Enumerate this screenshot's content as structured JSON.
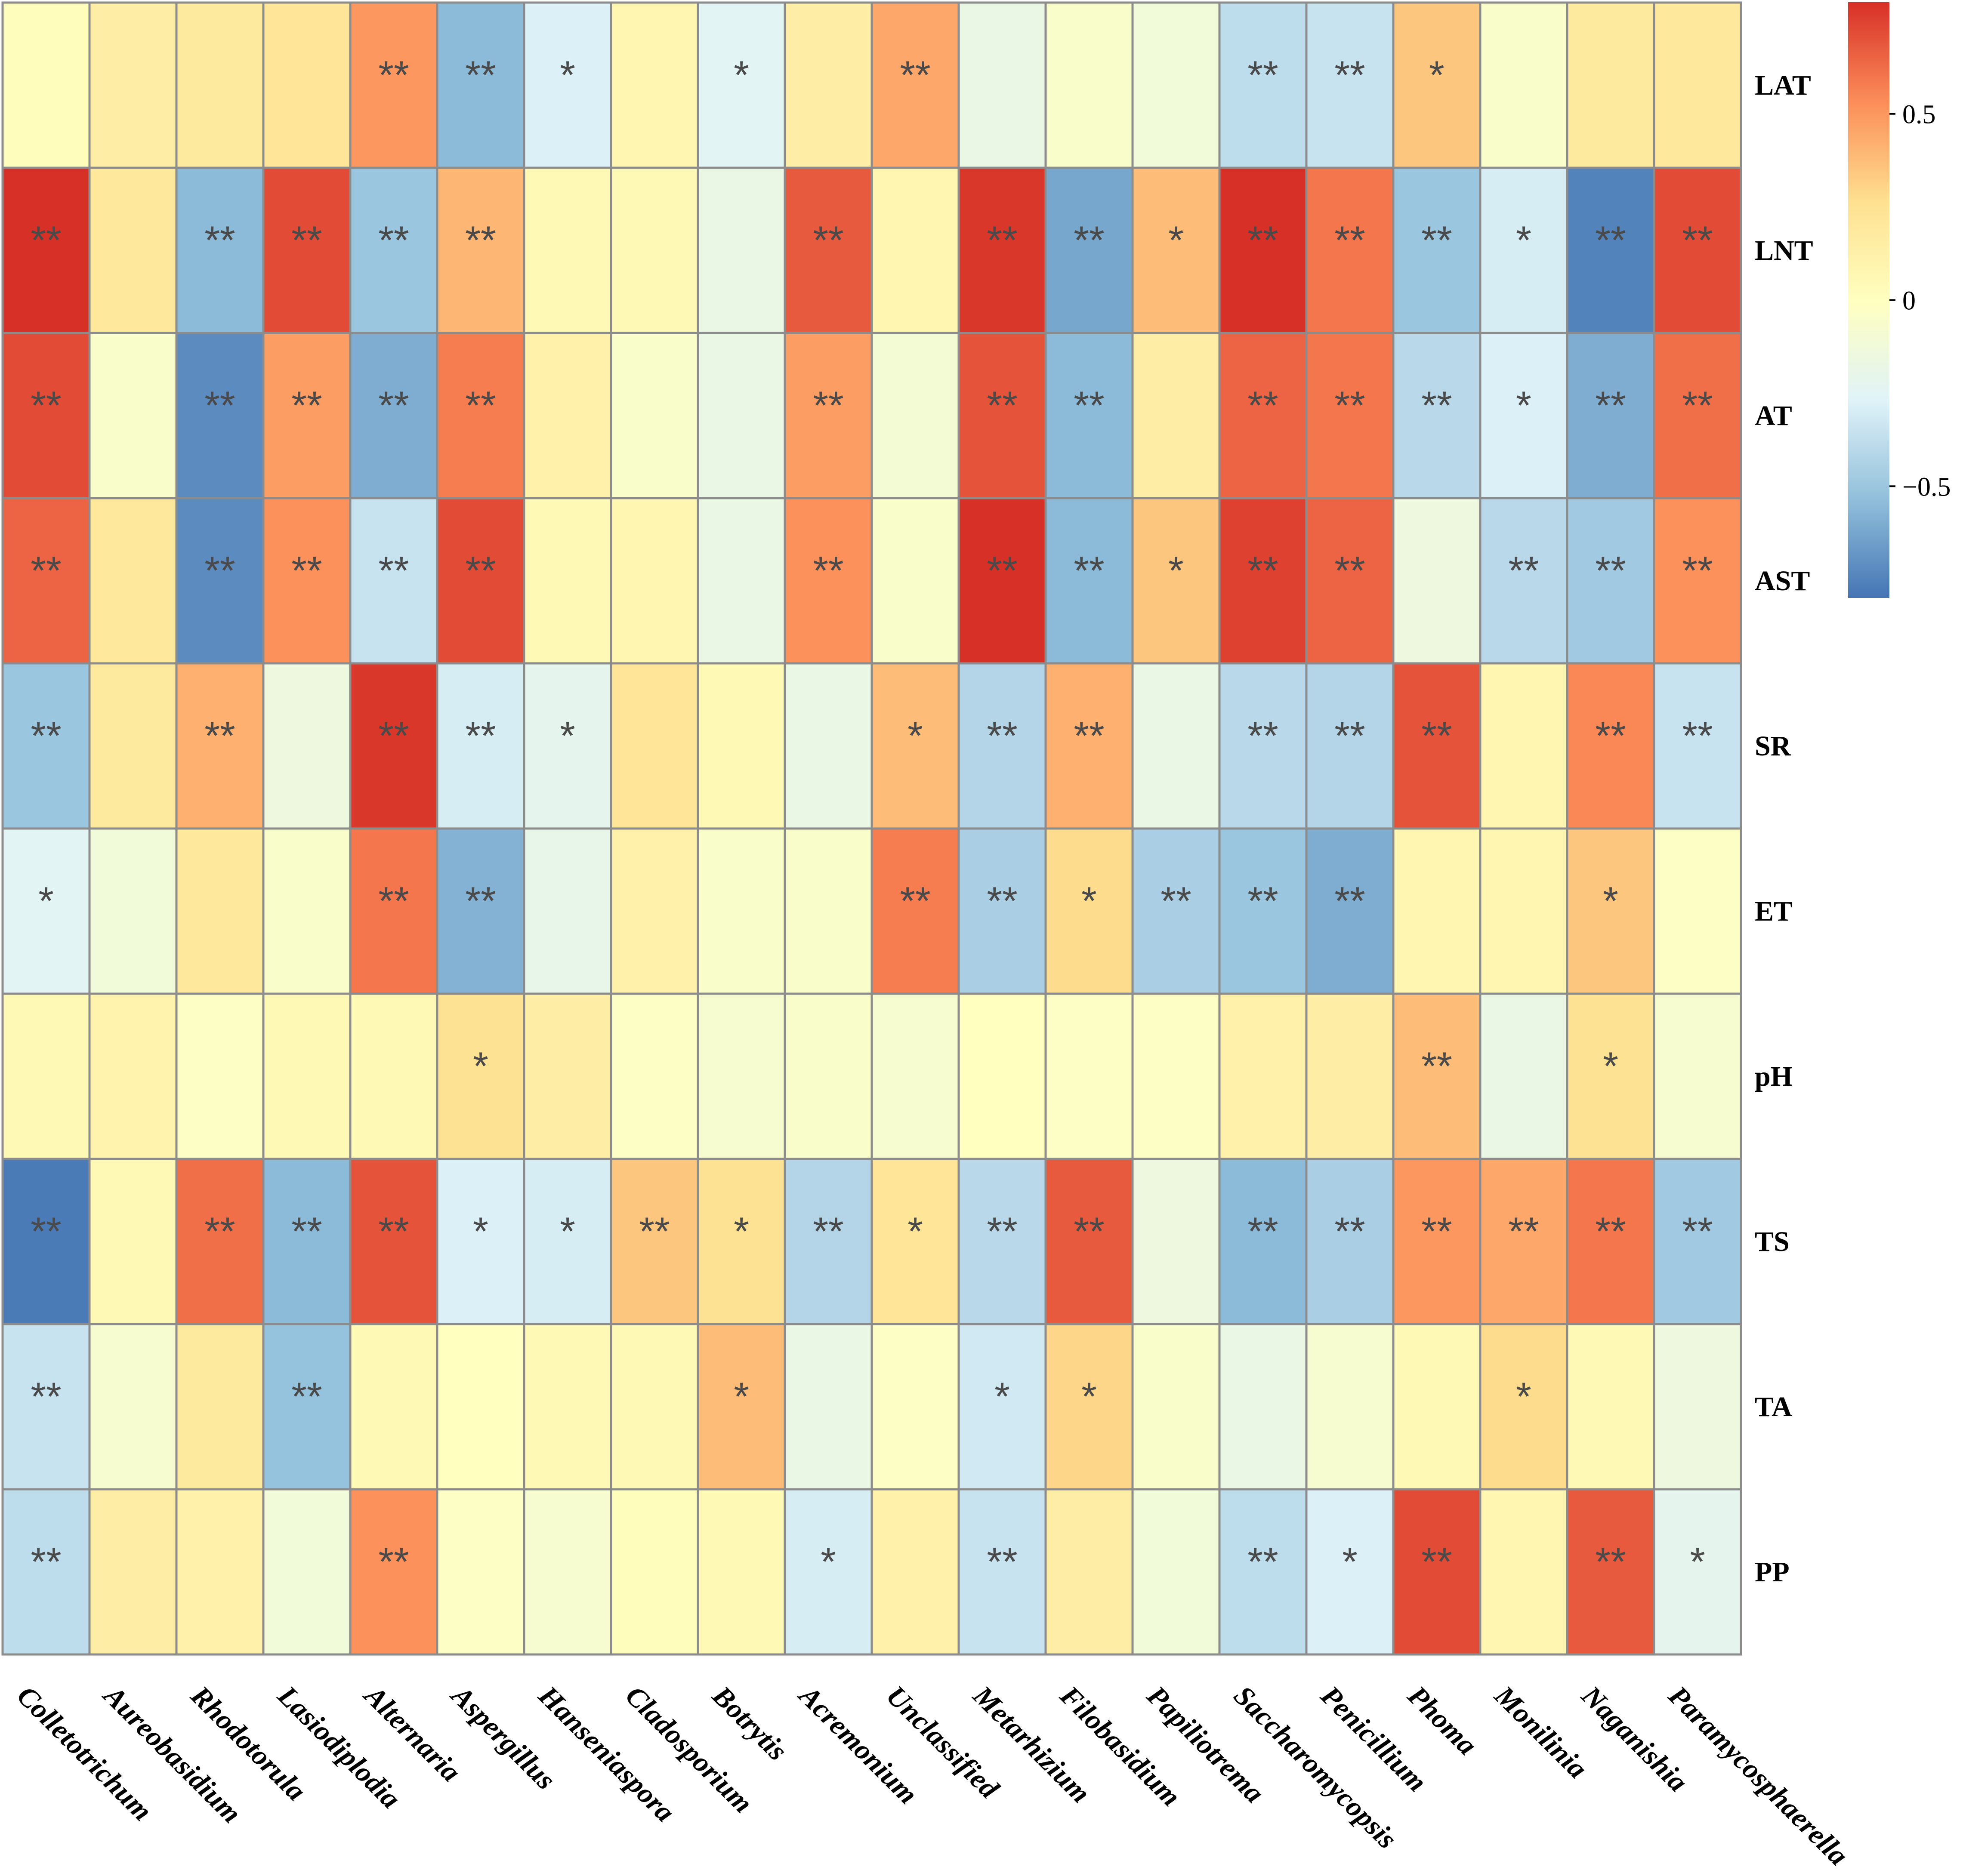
{
  "chart_data": {
    "type": "heatmap",
    "title": "",
    "columns": [
      "Colletotrichum",
      "Aureobasidium",
      "Rhodotorula",
      "Lasiodiplodia",
      "Alternaria",
      "Aspergillus",
      "Hanseniaspora",
      "Cladosporium",
      "Botrytis",
      "Acremonium",
      "Unclassified",
      "Metarhizium",
      "Filobasidium",
      "Papiliotrema",
      "Saccharomycopsis",
      "Penicillium",
      "Phoma",
      "Monilinia",
      "Naganishia",
      "Paramycosphaerella"
    ],
    "rows": [
      "LAT",
      "LNT",
      "AT",
      "AST",
      "SR",
      "ET",
      "pH",
      "TS",
      "TA",
      "PP"
    ],
    "values": [
      [
        0.02,
        0.15,
        0.18,
        0.22,
        0.5,
        -0.55,
        -0.28,
        0.08,
        -0.25,
        0.15,
        0.45,
        -0.18,
        -0.05,
        -0.12,
        -0.38,
        -0.35,
        0.35,
        -0.05,
        0.18,
        0.2
      ],
      [
        0.82,
        0.2,
        -0.55,
        0.72,
        -0.5,
        0.4,
        0.05,
        0.05,
        -0.18,
        0.68,
        0.08,
        0.78,
        -0.62,
        0.38,
        0.8,
        0.6,
        -0.5,
        -0.3,
        -0.75,
        0.72
      ],
      [
        0.72,
        -0.05,
        -0.72,
        0.48,
        -0.6,
        0.58,
        0.12,
        -0.05,
        -0.18,
        0.48,
        -0.1,
        0.7,
        -0.55,
        0.15,
        0.65,
        0.6,
        -0.4,
        -0.28,
        -0.6,
        0.62
      ],
      [
        0.65,
        0.2,
        -0.72,
        0.52,
        -0.35,
        0.72,
        0.05,
        0.08,
        -0.18,
        0.52,
        -0.05,
        0.85,
        -0.55,
        0.35,
        0.75,
        0.65,
        -0.15,
        -0.4,
        -0.48,
        0.52
      ],
      [
        -0.5,
        0.18,
        0.42,
        -0.15,
        0.78,
        -0.3,
        -0.22,
        0.22,
        0.05,
        -0.18,
        0.38,
        -0.42,
        0.42,
        -0.18,
        -0.4,
        -0.42,
        0.7,
        0.08,
        0.55,
        -0.35
      ],
      [
        -0.25,
        -0.12,
        0.2,
        -0.05,
        0.6,
        -0.58,
        -0.2,
        0.12,
        -0.05,
        -0.05,
        0.58,
        -0.45,
        0.28,
        -0.45,
        -0.5,
        -0.6,
        0.08,
        0.08,
        0.35,
        -0.03
      ],
      [
        0.05,
        0.1,
        -0.03,
        0.05,
        0.05,
        0.25,
        0.15,
        -0.03,
        -0.08,
        -0.05,
        -0.08,
        0.0,
        -0.03,
        -0.03,
        0.12,
        0.15,
        0.38,
        -0.18,
        0.25,
        -0.08
      ],
      [
        -0.78,
        0.05,
        0.62,
        -0.55,
        0.7,
        -0.28,
        -0.3,
        0.35,
        0.25,
        -0.42,
        0.22,
        -0.4,
        0.68,
        -0.15,
        -0.55,
        -0.45,
        0.5,
        0.45,
        0.6,
        -0.48
      ],
      [
        -0.35,
        -0.08,
        0.18,
        -0.52,
        0.05,
        0.0,
        0.05,
        0.05,
        0.38,
        -0.18,
        -0.03,
        -0.32,
        0.3,
        -0.05,
        -0.18,
        -0.08,
        0.05,
        0.28,
        0.05,
        -0.15
      ],
      [
        -0.38,
        0.15,
        0.12,
        -0.12,
        0.52,
        -0.03,
        -0.08,
        0.02,
        0.05,
        -0.3,
        0.12,
        -0.35,
        0.15,
        -0.12,
        -0.38,
        -0.28,
        0.72,
        0.08,
        0.68,
        -0.22
      ]
    ],
    "significance": [
      [
        "",
        "",
        "",
        "",
        "**",
        "**",
        "*",
        "",
        "*",
        "",
        "**",
        "",
        "",
        "",
        "**",
        "**",
        "*",
        "",
        "",
        ""
      ],
      [
        "**",
        "",
        "**",
        "**",
        "**",
        "**",
        "",
        "",
        "",
        "**",
        "",
        "**",
        "**",
        "*",
        "**",
        "**",
        "**",
        "*",
        "**",
        "**"
      ],
      [
        "**",
        "",
        "**",
        "**",
        "**",
        "**",
        "",
        "",
        "",
        "**",
        "",
        "**",
        "**",
        "",
        "**",
        "**",
        "**",
        "*",
        "**",
        "**"
      ],
      [
        "**",
        "",
        "**",
        "**",
        "**",
        "**",
        "",
        "",
        "",
        "**",
        "",
        "**",
        "**",
        "*",
        "**",
        "**",
        "",
        "**",
        "**",
        "**"
      ],
      [
        "**",
        "",
        "**",
        "",
        "**",
        "**",
        "*",
        "",
        "",
        "",
        "*",
        "**",
        "**",
        "",
        "**",
        "**",
        "**",
        "",
        "**",
        "**"
      ],
      [
        "*",
        "",
        "",
        "",
        "**",
        "**",
        "",
        "",
        "",
        "",
        "**",
        "**",
        "*",
        "**",
        "**",
        "**",
        "",
        "",
        "*",
        ""
      ],
      [
        "",
        "",
        "",
        "",
        "",
        "*",
        "",
        "",
        "",
        "",
        "",
        "",
        "",
        "",
        "",
        "",
        "**",
        "",
        "*",
        ""
      ],
      [
        "**",
        "",
        "**",
        "**",
        "**",
        "*",
        "*",
        "**",
        "*",
        "**",
        "*",
        "**",
        "**",
        "",
        "**",
        "**",
        "**",
        "**",
        "**",
        "**"
      ],
      [
        "**",
        "",
        "",
        "**",
        "",
        "",
        "",
        "",
        "*",
        "",
        "",
        "*",
        "*",
        "",
        "",
        "",
        "",
        "*",
        "",
        ""
      ],
      [
        "**",
        "",
        "",
        "",
        "**",
        "",
        "",
        "",
        "",
        "*",
        "",
        "**",
        "",
        "",
        "**",
        "*",
        "**",
        "",
        "**",
        "*"
      ]
    ],
    "colorbar": {
      "min": -0.8,
      "max": 0.8,
      "ticks": [
        0.5,
        0,
        -0.5
      ],
      "tick_labels": [
        "0.5",
        "0",
        "−0.5"
      ],
      "colors": [
        "#4575b4",
        "#91bfdb",
        "#e0f3f8",
        "#ffffbf",
        "#fee090",
        "#fc8d59",
        "#d73027"
      ]
    },
    "legend": "right"
  }
}
